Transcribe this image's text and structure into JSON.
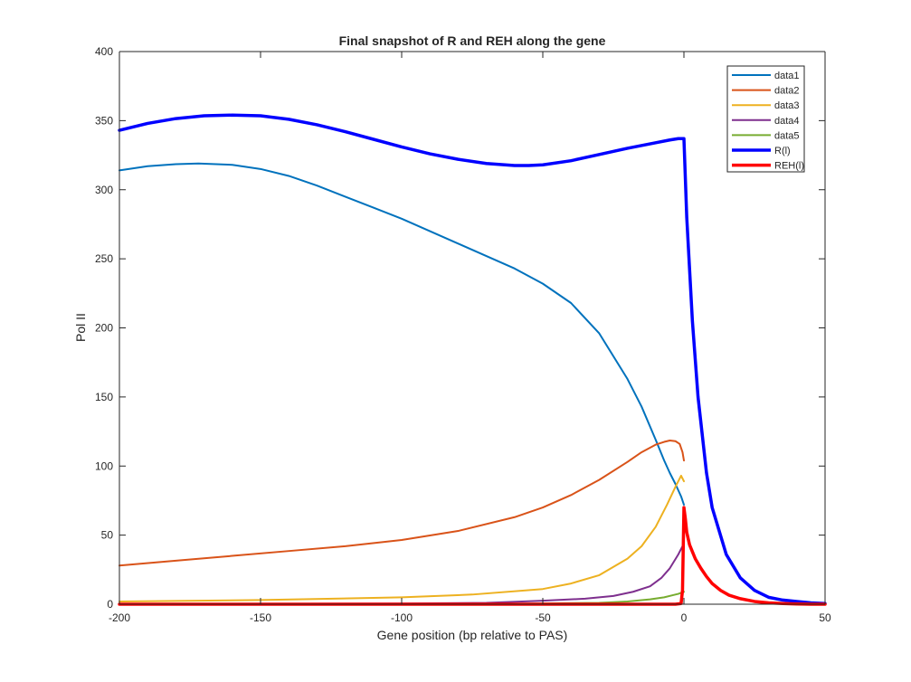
{
  "chart_data": {
    "type": "line",
    "title": "Final snapshot of R and REH along the gene",
    "xlabel": "Gene position (bp relative to PAS)",
    "ylabel": "Pol II",
    "xlim": [
      -200,
      50
    ],
    "ylim": [
      0,
      400
    ],
    "xticks": [
      -200,
      -150,
      -100,
      -50,
      0,
      50
    ],
    "yticks": [
      0,
      50,
      100,
      150,
      200,
      250,
      300,
      350,
      400
    ],
    "grid": false,
    "legend_position": "top-right",
    "series": [
      {
        "name": "data1",
        "color": "#0072BD",
        "width": 2,
        "x": [
          -200,
          -190,
          -180,
          -172,
          -160,
          -150,
          -140,
          -130,
          -120,
          -110,
          -100,
          -90,
          -80,
          -70,
          -60,
          -50,
          -40,
          -30,
          -20,
          -15,
          -10,
          -7,
          -5,
          -3,
          -1,
          0
        ],
        "y": [
          314,
          317,
          318.5,
          319,
          318,
          315,
          310,
          303,
          295,
          287,
          279,
          270,
          261,
          252,
          243,
          232,
          218,
          196,
          163,
          143,
          119,
          104,
          95,
          87,
          78,
          72
        ]
      },
      {
        "name": "data2",
        "color": "#D95319",
        "width": 2,
        "x": [
          -200,
          -180,
          -160,
          -140,
          -120,
          -100,
          -80,
          -60,
          -50,
          -40,
          -30,
          -20,
          -15,
          -10,
          -7,
          -5,
          -3,
          -1.5,
          -0.5,
          0
        ],
        "y": [
          28,
          31.5,
          35,
          38.5,
          42,
          46.5,
          53,
          63,
          70,
          79,
          90,
          103,
          110,
          115.5,
          117.5,
          118.5,
          118,
          116,
          110,
          104
        ]
      },
      {
        "name": "data3",
        "color": "#EDB120",
        "width": 2,
        "x": [
          -200,
          -150,
          -100,
          -75,
          -50,
          -40,
          -30,
          -20,
          -15,
          -10,
          -6,
          -3,
          -1,
          -0.5,
          0
        ],
        "y": [
          2,
          3,
          5,
          7,
          11,
          15,
          21,
          33,
          42,
          56,
          72,
          85,
          93,
          91,
          89
        ]
      },
      {
        "name": "data4",
        "color": "#7E2F8E",
        "width": 2,
        "x": [
          -200,
          -100,
          -70,
          -50,
          -35,
          -25,
          -18,
          -12,
          -8,
          -5,
          -2,
          0
        ],
        "y": [
          0,
          0.5,
          1,
          2.5,
          4,
          6,
          9,
          13,
          19,
          26,
          36,
          44
        ]
      },
      {
        "name": "data5",
        "color": "#77AC30",
        "width": 2,
        "x": [
          -200,
          -60,
          -30,
          -20,
          -12,
          -7,
          -4,
          -2,
          0
        ],
        "y": [
          0,
          0.3,
          1,
          2,
          3.5,
          5,
          6.5,
          7.5,
          9
        ]
      },
      {
        "name": "R(l)",
        "color": "#0000FF",
        "width": 3.5,
        "x": [
          -200,
          -190,
          -180,
          -170,
          -160,
          -150,
          -140,
          -130,
          -120,
          -110,
          -100,
          -90,
          -80,
          -70,
          -60,
          -55,
          -50,
          -40,
          -30,
          -20,
          -10,
          -5,
          -2,
          0,
          1,
          3,
          5,
          8,
          10,
          15,
          20,
          25,
          30,
          35,
          40,
          45,
          50
        ],
        "y": [
          343,
          348,
          351.5,
          353.5,
          354,
          353.5,
          351,
          347,
          342,
          336.5,
          331,
          326,
          322,
          319,
          317.5,
          317.5,
          318,
          321,
          325.5,
          330,
          334,
          336,
          337,
          337,
          280,
          205,
          150,
          95,
          70,
          36,
          19,
          10,
          5,
          3,
          2,
          1,
          0.5
        ]
      },
      {
        "name": "REH(l)",
        "color": "#FF0000",
        "width": 3.5,
        "x": [
          -200,
          -3,
          -1,
          -0.5,
          0,
          0.5,
          1,
          2,
          4,
          6,
          8,
          10,
          13,
          16,
          20,
          25,
          30,
          35,
          40,
          45,
          50
        ],
        "y": [
          0,
          0,
          0.5,
          10,
          70,
          62,
          52,
          43,
          33,
          26,
          20,
          15,
          10,
          6.5,
          4,
          2,
          1,
          0.5,
          0.2,
          0,
          0
        ]
      }
    ]
  }
}
